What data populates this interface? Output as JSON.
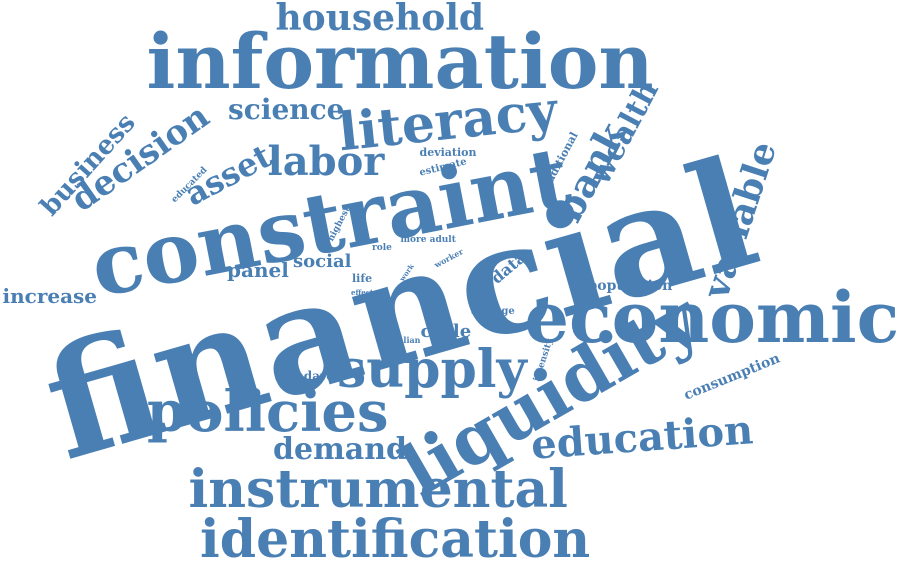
{
  "accent_color": "#4a7fb4",
  "words": [
    "financial",
    "constraint",
    "information",
    "liquidity",
    "economic",
    "supply",
    "policies",
    "literacy",
    "instrumental",
    "identification",
    "household",
    "decision",
    "labor",
    "asset",
    "bank",
    "education",
    "variable",
    "business",
    "science",
    "wealth",
    "demand",
    "increase",
    "panel",
    "social",
    "cycle",
    "data",
    "population",
    "consumption",
    "standard",
    "average",
    "deviation",
    "estimate",
    "additional",
    "educated",
    "highest",
    "role",
    "more adult",
    "life",
    "effect",
    "work",
    "worker",
    "shiw",
    "italian",
    "intensity"
  ]
}
